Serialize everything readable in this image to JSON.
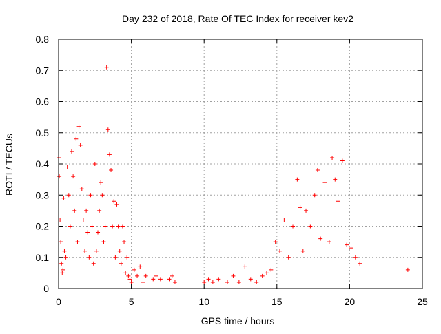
{
  "chart_data": {
    "type": "scatter",
    "title": "Day 232 of 2018, Rate Of TEC Index for receiver kev2",
    "xlabel": "GPS time / hours",
    "ylabel": "ROTI / TECUs",
    "xlim": [
      0,
      25
    ],
    "ylim": [
      0,
      0.8
    ],
    "xticks": [
      0,
      5,
      10,
      15,
      20,
      25
    ],
    "yticks": [
      0,
      0.1,
      0.2,
      0.3,
      0.4,
      0.5,
      0.6,
      0.7,
      0.8
    ],
    "grid": true,
    "marker": "plus",
    "series": [
      {
        "name": "ROTI",
        "color": "#ff0000",
        "x": [
          0.0,
          0.05,
          0.1,
          0.15,
          0.2,
          0.25,
          0.3,
          0.35,
          0.4,
          0.5,
          0.6,
          0.7,
          0.8,
          0.9,
          1.0,
          1.1,
          1.2,
          1.3,
          1.4,
          1.5,
          1.6,
          1.7,
          1.8,
          1.9,
          2.0,
          2.1,
          2.2,
          2.3,
          2.4,
          2.5,
          2.6,
          2.7,
          2.8,
          2.9,
          3.0,
          3.1,
          3.2,
          3.3,
          3.4,
          3.5,
          3.6,
          3.7,
          3.8,
          3.9,
          4.0,
          4.1,
          4.2,
          4.3,
          4.4,
          4.5,
          4.6,
          4.7,
          4.8,
          4.9,
          5.0,
          5.2,
          5.4,
          5.6,
          5.8,
          6.0,
          6.5,
          6.7,
          7.0,
          7.6,
          7.8,
          8.0,
          10.0,
          10.3,
          10.6,
          11.0,
          11.6,
          12.0,
          12.4,
          12.8,
          13.2,
          13.6,
          14.0,
          14.3,
          14.6,
          14.9,
          15.2,
          15.5,
          15.8,
          16.1,
          16.4,
          16.6,
          16.8,
          17.0,
          17.3,
          17.6,
          17.8,
          18.0,
          18.3,
          18.6,
          18.8,
          19.0,
          19.2,
          19.5,
          19.8,
          20.1,
          20.4,
          20.7,
          24.0
        ],
        "y": [
          0.42,
          0.36,
          0.22,
          0.15,
          0.08,
          0.05,
          0.06,
          0.29,
          0.12,
          0.1,
          0.39,
          0.3,
          0.2,
          0.44,
          0.36,
          0.25,
          0.48,
          0.15,
          0.52,
          0.46,
          0.32,
          0.22,
          0.12,
          0.25,
          0.18,
          0.1,
          0.3,
          0.2,
          0.08,
          0.4,
          0.12,
          0.18,
          0.25,
          0.34,
          0.3,
          0.15,
          0.2,
          0.71,
          0.51,
          0.43,
          0.38,
          0.2,
          0.28,
          0.1,
          0.27,
          0.2,
          0.12,
          0.08,
          0.2,
          0.15,
          0.05,
          0.1,
          0.04,
          0.03,
          0.02,
          0.06,
          0.04,
          0.07,
          0.02,
          0.04,
          0.03,
          0.04,
          0.03,
          0.03,
          0.04,
          0.02,
          0.02,
          0.03,
          0.02,
          0.03,
          0.02,
          0.04,
          0.02,
          0.07,
          0.03,
          0.02,
          0.04,
          0.05,
          0.06,
          0.15,
          0.12,
          0.22,
          0.1,
          0.2,
          0.35,
          0.26,
          0.12,
          0.25,
          0.2,
          0.3,
          0.38,
          0.16,
          0.34,
          0.15,
          0.42,
          0.35,
          0.28,
          0.41,
          0.14,
          0.13,
          0.1,
          0.08,
          0.06
        ]
      }
    ]
  }
}
